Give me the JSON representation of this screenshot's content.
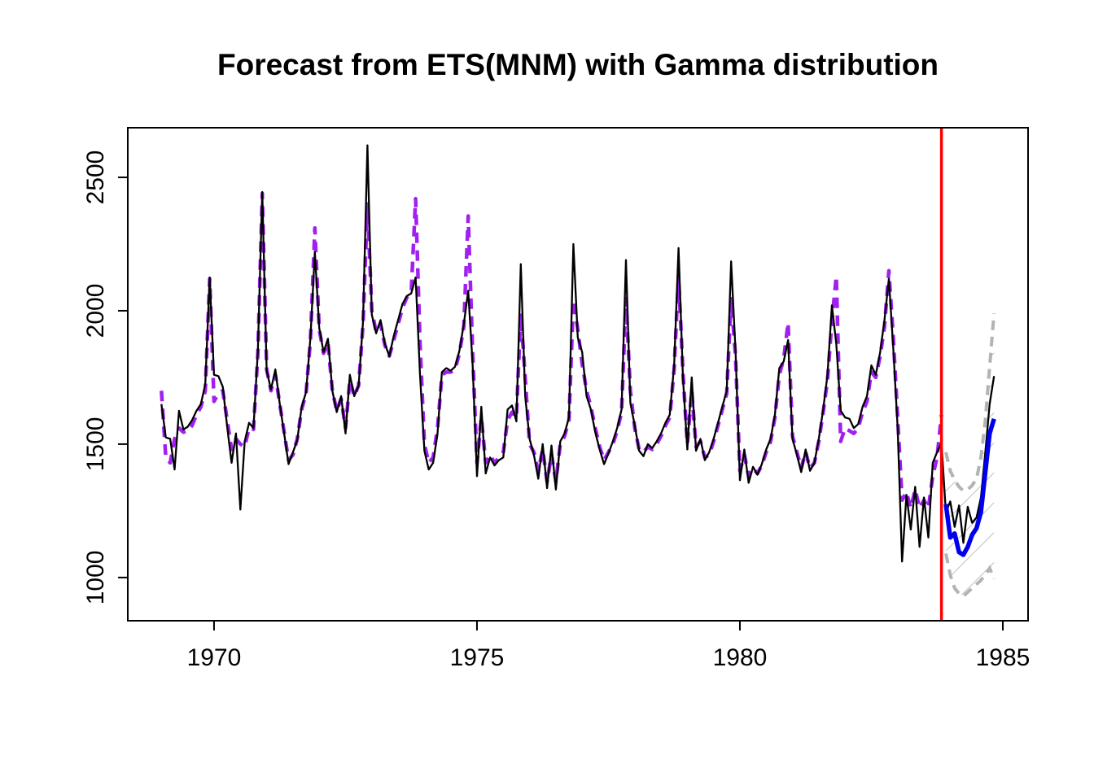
{
  "figure": {
    "title": "Forecast from ETS(MNM) with Gamma distribution"
  },
  "chart_data": {
    "type": "line",
    "title": "Forecast from ETS(MNM) with Gamma distribution",
    "xlabel": "",
    "ylabel": "",
    "legend": "none",
    "grid": "off",
    "x_axis": {
      "ticks": [
        1970,
        1975,
        1980,
        1985
      ],
      "lim": [
        1968.36,
        1985.48
      ]
    },
    "y_axis": {
      "ticks": [
        1000,
        1500,
        2000,
        2500
      ],
      "lim": [
        838,
        2686
      ]
    },
    "start_year": 1969,
    "frequency": 12,
    "forecast_origin_year": 1983.8333,
    "colors": {
      "actuals": "#000000",
      "fitted": "#A020F0",
      "forecast": "#0000EE",
      "interval": "#B3B3B3",
      "hatch": "#ABABAB",
      "origin_line": "#FF0000",
      "axis": "#000000"
    },
    "series": [
      {
        "name": "actuals",
        "role": "observed",
        "style": "solid",
        "start_index": 0,
        "values": [
          1650,
          1525,
          1520,
          1405,
          1625,
          1555,
          1565,
          1590,
          1625,
          1650,
          1725,
          2125,
          1760,
          1755,
          1715,
          1565,
          1430,
          1540,
          1255,
          1510,
          1580,
          1560,
          1850,
          2445,
          1775,
          1705,
          1780,
          1650,
          1540,
          1425,
          1470,
          1515,
          1640,
          1695,
          1900,
          2220,
          1935,
          1845,
          1895,
          1700,
          1620,
          1680,
          1540,
          1760,
          1680,
          1720,
          1960,
          2620,
          1985,
          1915,
          1965,
          1875,
          1830,
          1905,
          1965,
          2025,
          2055,
          2065,
          2125,
          1760,
          1475,
          1405,
          1430,
          1540,
          1770,
          1785,
          1775,
          1790,
          1850,
          1950,
          2075,
          1800,
          1380,
          1640,
          1390,
          1450,
          1420,
          1440,
          1450,
          1630,
          1645,
          1585,
          2175,
          1680,
          1520,
          1460,
          1370,
          1500,
          1335,
          1495,
          1330,
          1510,
          1540,
          1600,
          2250,
          1900,
          1845,
          1680,
          1630,
          1545,
          1480,
          1425,
          1465,
          1510,
          1560,
          1630,
          2190,
          1655,
          1570,
          1475,
          1455,
          1500,
          1485,
          1510,
          1540,
          1580,
          1610,
          1795,
          2235,
          1750,
          1480,
          1750,
          1475,
          1520,
          1440,
          1470,
          1520,
          1580,
          1640,
          1700,
          2185,
          1850,
          1365,
          1480,
          1355,
          1415,
          1385,
          1425,
          1480,
          1520,
          1610,
          1785,
          1810,
          1890,
          1520,
          1460,
          1395,
          1480,
          1400,
          1430,
          1520,
          1630,
          1760,
          2020,
          1875,
          1625,
          1600,
          1595,
          1560,
          1575,
          1640,
          1680,
          1795,
          1760,
          1845,
          1965,
          2120,
          1860,
          1560,
          1060,
          1310,
          1180,
          1340,
          1115,
          1300,
          1150,
          1430,
          1470,
          1505,
          1245,
          1285,
          1190,
          1270,
          1130,
          1265,
          1205,
          1225,
          1300,
          1470,
          1650,
          1755
        ]
      },
      {
        "name": "fitted",
        "role": "fitted",
        "style": "dashed",
        "start_index": 0,
        "values": [
          1700,
          1450,
          1430,
          1520,
          1560,
          1545,
          1550,
          1570,
          1610,
          1640,
          1700,
          2120,
          1660,
          1690,
          1700,
          1590,
          1480,
          1520,
          1500,
          1490,
          1560,
          1555,
          1840,
          2440,
          1780,
          1700,
          1760,
          1650,
          1545,
          1440,
          1460,
          1520,
          1630,
          1690,
          1890,
          2310,
          1930,
          1840,
          1880,
          1700,
          1625,
          1670,
          1560,
          1740,
          1680,
          1720,
          1950,
          2400,
          2000,
          1920,
          1950,
          1870,
          1830,
          1890,
          1950,
          2010,
          2050,
          2070,
          2420,
          1880,
          1500,
          1430,
          1450,
          1560,
          1760,
          1770,
          1770,
          1780,
          1840,
          1940,
          2355,
          1850,
          1430,
          1600,
          1430,
          1460,
          1430,
          1450,
          1470,
          1590,
          1620,
          1600,
          1990,
          1750,
          1500,
          1470,
          1400,
          1480,
          1360,
          1460,
          1360,
          1500,
          1530,
          1590,
          2040,
          1930,
          1800,
          1700,
          1640,
          1560,
          1490,
          1440,
          1470,
          1500,
          1550,
          1620,
          2045,
          1700,
          1560,
          1480,
          1470,
          1490,
          1480,
          1500,
          1530,
          1570,
          1600,
          1780,
          2130,
          1770,
          1500,
          1700,
          1490,
          1510,
          1450,
          1460,
          1510,
          1570,
          1630,
          1690,
          2045,
          1830,
          1400,
          1460,
          1380,
          1410,
          1390,
          1420,
          1470,
          1510,
          1600,
          1760,
          1820,
          1955,
          1530,
          1470,
          1410,
          1470,
          1410,
          1430,
          1510,
          1620,
          1740,
          1960,
          2130,
          1510,
          1560,
          1550,
          1540,
          1560,
          1620,
          1660,
          1770,
          1750,
          1830,
          1940,
          2150,
          1900,
          1600,
          1290,
          1320,
          1260,
          1330,
          1260,
          1290,
          1260,
          1380,
          1450,
          1610
        ]
      },
      {
        "name": "point-forecast",
        "role": "forecast",
        "style": "solid",
        "start_index": 179,
        "values": [
          1275,
          1150,
          1165,
          1095,
          1085,
          1115,
          1160,
          1185,
          1245,
          1395,
          1540,
          1595
        ]
      },
      {
        "name": "upper-bound",
        "role": "interval_upper",
        "style": "dashed",
        "start_index": 179,
        "values": [
          1470,
          1400,
          1365,
          1340,
          1325,
          1330,
          1345,
          1370,
          1450,
          1590,
          1790,
          1990
        ]
      },
      {
        "name": "lower-bound",
        "role": "interval_lower",
        "style": "dashed",
        "start_index": 179,
        "values": [
          1090,
          1010,
          960,
          940,
          930,
          945,
          960,
          975,
          990,
          1010,
          1035,
          995
        ]
      }
    ]
  }
}
